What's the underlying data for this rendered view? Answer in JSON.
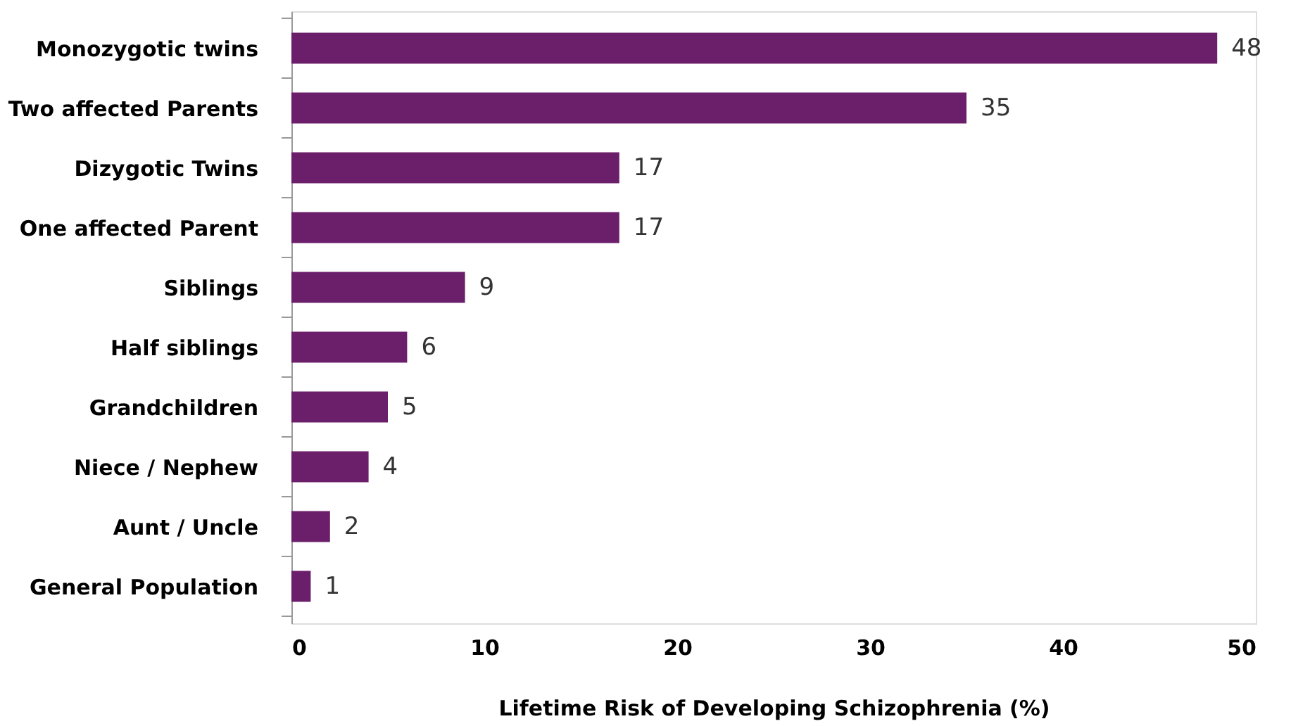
{
  "chart_data": {
    "type": "bar",
    "orientation": "horizontal",
    "xlabel": "Lifetime Risk of Developing Schizophrenia (%)",
    "categories": [
      "Monozygotic twins",
      "Two affected Parents",
      "Dizygotic Twins",
      "One affected Parent",
      "Siblings",
      "Half siblings",
      "Grandchildren",
      "Niece / Nephew",
      "Aunt / Uncle",
      "General Population"
    ],
    "values": [
      48,
      35,
      17,
      17,
      9,
      6,
      5,
      4,
      2,
      1
    ],
    "color": "#6b1f6b",
    "xlim": [
      0,
      50
    ],
    "xticks": [
      0,
      10,
      20,
      30,
      40,
      50
    ],
    "grid": false,
    "data_labels": true
  }
}
